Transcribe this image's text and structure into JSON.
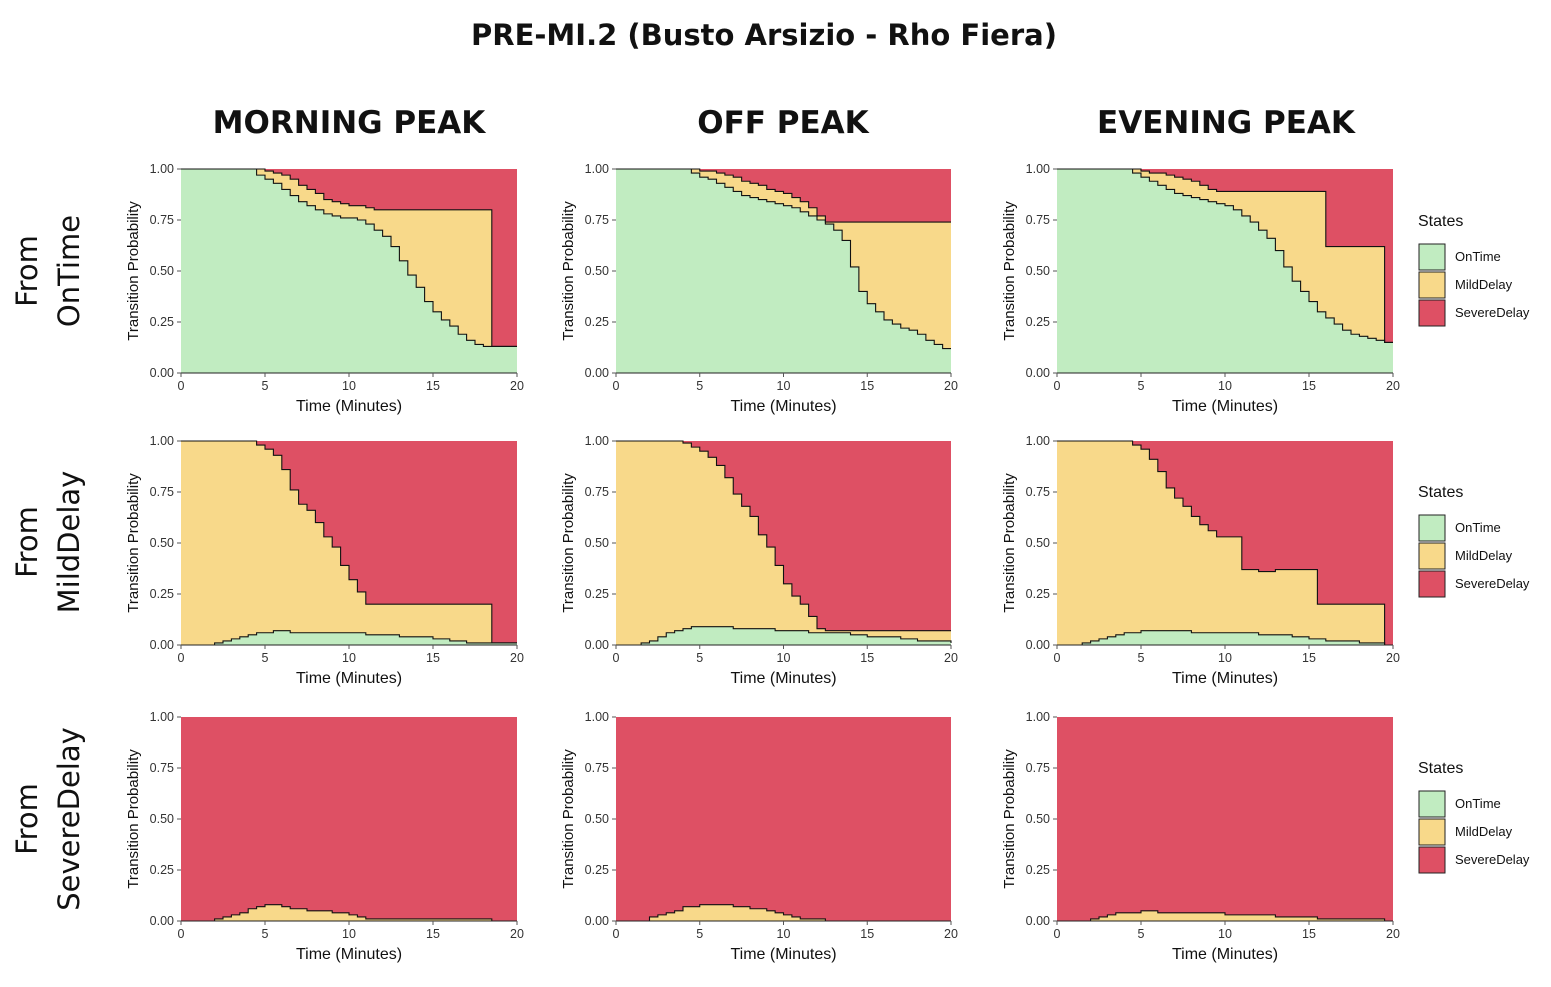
{
  "title": "PRE-MI.2 (Busto Arsizio - Rho Fiera)",
  "column_titles": [
    "MORNING PEAK",
    "OFF PEAK",
    "EVENING PEAK"
  ],
  "row_titles": [
    {
      "line1": "From",
      "line2": "OnTime"
    },
    {
      "line1": "From",
      "line2": "MildDelay"
    },
    {
      "line1": "From",
      "line2": "SevereDelay"
    }
  ],
  "legend": {
    "title": "States",
    "items": [
      {
        "label": "OnTime",
        "color": "#c1ecc1"
      },
      {
        "label": "MildDelay",
        "color": "#f8d98a"
      },
      {
        "label": "SevereDelay",
        "color": "#de5064"
      }
    ]
  },
  "chart_data": {
    "type": "area",
    "subtype": "stacked-step-area",
    "xlabel": "Time (Minutes)",
    "ylabel": "Transition Probability",
    "xlim": [
      0,
      20
    ],
    "ylim": [
      0,
      1
    ],
    "x_ticks": [
      0,
      5,
      10,
      15,
      20
    ],
    "y_ticks": [
      "0.00",
      "0.25",
      "0.50",
      "0.75",
      "1.00"
    ],
    "grid": false,
    "legend_position": "right",
    "series_order": [
      "OnTime",
      "MildDelay",
      "SevereDelay"
    ],
    "colors": {
      "OnTime": "#c1ecc1",
      "MildDelay": "#f8d98a",
      "SevereDelay": "#de5064"
    },
    "panels": [
      {
        "row": "From OnTime",
        "column": "MORNING PEAK",
        "x": [
          0,
          4,
          4.5,
          5,
          5.5,
          6,
          6.5,
          7,
          7.5,
          8,
          8.5,
          9,
          9.5,
          10,
          10.5,
          11,
          11.5,
          12,
          12.5,
          13,
          13.5,
          14,
          14.5,
          15,
          15.5,
          16,
          16.5,
          17,
          17.5,
          18,
          18.5,
          20
        ],
        "OnTime": [
          1.0,
          1.0,
          0.97,
          0.95,
          0.93,
          0.9,
          0.87,
          0.84,
          0.82,
          0.8,
          0.78,
          0.77,
          0.76,
          0.76,
          0.75,
          0.73,
          0.7,
          0.67,
          0.62,
          0.55,
          0.48,
          0.42,
          0.35,
          0.3,
          0.26,
          0.23,
          0.19,
          0.16,
          0.14,
          0.13,
          0.13,
          0.13
        ],
        "MildDelay": [
          0.0,
          0.0,
          0.03,
          0.04,
          0.05,
          0.07,
          0.08,
          0.08,
          0.08,
          0.08,
          0.07,
          0.07,
          0.07,
          0.06,
          0.07,
          0.08,
          0.1,
          0.13,
          0.18,
          0.25,
          0.32,
          0.38,
          0.45,
          0.5,
          0.54,
          0.57,
          0.61,
          0.64,
          0.66,
          0.67,
          0.0,
          0.0
        ]
      },
      {
        "row": "From OnTime",
        "column": "OFF PEAK",
        "x": [
          0,
          4,
          4.5,
          5,
          5.5,
          6,
          6.5,
          7,
          7.5,
          8,
          8.5,
          9,
          9.5,
          10,
          10.5,
          11,
          11.5,
          12,
          12.5,
          13,
          13.5,
          14,
          14.5,
          15,
          15.5,
          16,
          16.5,
          17,
          17.5,
          18,
          18.5,
          19,
          19.5,
          20
        ],
        "OnTime": [
          1.0,
          1.0,
          0.98,
          0.96,
          0.95,
          0.93,
          0.91,
          0.89,
          0.87,
          0.86,
          0.85,
          0.84,
          0.83,
          0.82,
          0.81,
          0.79,
          0.77,
          0.75,
          0.73,
          0.7,
          0.65,
          0.52,
          0.4,
          0.34,
          0.3,
          0.26,
          0.24,
          0.22,
          0.21,
          0.19,
          0.16,
          0.14,
          0.12,
          0.12
        ],
        "MildDelay": [
          0.0,
          0.0,
          0.02,
          0.03,
          0.04,
          0.05,
          0.06,
          0.07,
          0.07,
          0.07,
          0.07,
          0.06,
          0.06,
          0.06,
          0.05,
          0.05,
          0.04,
          0.02,
          0.01,
          0.04,
          0.09,
          0.22,
          0.34,
          0.4,
          0.44,
          0.48,
          0.5,
          0.52,
          0.53,
          0.55,
          0.58,
          0.6,
          0.62,
          0.62
        ]
      },
      {
        "row": "From OnTime",
        "column": "EVENING PEAK",
        "x": [
          0,
          4,
          4.5,
          5,
          5.5,
          6,
          6.5,
          7,
          7.5,
          8,
          8.5,
          9,
          9.5,
          10,
          10.5,
          11,
          11.5,
          12,
          12.5,
          13,
          13.5,
          14,
          14.5,
          15,
          15.5,
          16,
          16.5,
          17,
          17.5,
          18,
          18.5,
          19,
          19.5,
          20
        ],
        "OnTime": [
          1.0,
          1.0,
          0.98,
          0.96,
          0.94,
          0.92,
          0.9,
          0.88,
          0.87,
          0.86,
          0.85,
          0.84,
          0.83,
          0.82,
          0.8,
          0.77,
          0.74,
          0.7,
          0.66,
          0.6,
          0.52,
          0.45,
          0.4,
          0.35,
          0.3,
          0.27,
          0.24,
          0.21,
          0.19,
          0.18,
          0.17,
          0.16,
          0.15,
          0.15
        ],
        "MildDelay": [
          0.0,
          0.0,
          0.02,
          0.03,
          0.04,
          0.06,
          0.07,
          0.08,
          0.08,
          0.08,
          0.07,
          0.06,
          0.06,
          0.07,
          0.09,
          0.12,
          0.15,
          0.19,
          0.23,
          0.29,
          0.37,
          0.44,
          0.49,
          0.54,
          0.59,
          0.35,
          0.38,
          0.41,
          0.43,
          0.44,
          0.45,
          0.46,
          0.0,
          0.0
        ]
      },
      {
        "row": "From MildDelay",
        "column": "MORNING PEAK",
        "x": [
          0,
          1,
          1.5,
          2,
          2.5,
          3,
          3.5,
          4,
          4.5,
          5,
          5.5,
          6,
          6.5,
          7,
          7.5,
          8,
          8.5,
          9,
          9.5,
          10,
          10.5,
          11,
          11.5,
          12,
          12.5,
          13,
          14,
          15,
          16,
          17,
          18,
          18.5,
          19,
          20
        ],
        "OnTime": [
          0.0,
          0.0,
          0.0,
          0.01,
          0.02,
          0.03,
          0.04,
          0.05,
          0.06,
          0.06,
          0.07,
          0.07,
          0.06,
          0.06,
          0.06,
          0.06,
          0.06,
          0.06,
          0.06,
          0.06,
          0.06,
          0.05,
          0.05,
          0.05,
          0.05,
          0.04,
          0.04,
          0.03,
          0.02,
          0.01,
          0.01,
          0.01,
          0.01,
          0.01
        ],
        "MildDelay": [
          1.0,
          1.0,
          1.0,
          0.99,
          0.98,
          0.97,
          0.96,
          0.95,
          0.92,
          0.9,
          0.86,
          0.79,
          0.7,
          0.63,
          0.6,
          0.54,
          0.47,
          0.42,
          0.33,
          0.26,
          0.2,
          0.15,
          0.15,
          0.15,
          0.15,
          0.16,
          0.16,
          0.17,
          0.18,
          0.19,
          0.19,
          0.0,
          0.0,
          0.0
        ]
      },
      {
        "row": "From MildDelay",
        "column": "OFF PEAK",
        "x": [
          0,
          1,
          1.5,
          2,
          2.5,
          3,
          3.5,
          4,
          4.5,
          5,
          5.5,
          6,
          6.5,
          7,
          7.5,
          8,
          8.5,
          9,
          9.5,
          10,
          10.5,
          11,
          11.5,
          12,
          12.5,
          13,
          14,
          15,
          16,
          17,
          18,
          19,
          20
        ],
        "OnTime": [
          0.0,
          0.0,
          0.01,
          0.02,
          0.04,
          0.06,
          0.07,
          0.08,
          0.09,
          0.09,
          0.09,
          0.09,
          0.09,
          0.08,
          0.08,
          0.08,
          0.08,
          0.08,
          0.07,
          0.07,
          0.07,
          0.07,
          0.06,
          0.06,
          0.06,
          0.06,
          0.05,
          0.04,
          0.04,
          0.03,
          0.02,
          0.02,
          0.01
        ],
        "MildDelay": [
          1.0,
          1.0,
          0.99,
          0.98,
          0.96,
          0.94,
          0.93,
          0.91,
          0.88,
          0.86,
          0.83,
          0.79,
          0.73,
          0.66,
          0.6,
          0.55,
          0.46,
          0.4,
          0.32,
          0.23,
          0.17,
          0.13,
          0.08,
          0.02,
          0.01,
          0.01,
          0.02,
          0.03,
          0.03,
          0.04,
          0.05,
          0.05,
          0.06
        ]
      },
      {
        "row": "From MildDelay",
        "column": "EVENING PEAK",
        "x": [
          0,
          1,
          1.5,
          2,
          2.5,
          3,
          3.5,
          4,
          4.5,
          5,
          5.5,
          6,
          6.5,
          7,
          7.5,
          8,
          8.5,
          9,
          9.5,
          10,
          10.5,
          11,
          12,
          13,
          14,
          15,
          15.5,
          16,
          17,
          18,
          19,
          19.5,
          20
        ],
        "OnTime": [
          0.0,
          0.0,
          0.01,
          0.02,
          0.03,
          0.04,
          0.05,
          0.06,
          0.06,
          0.07,
          0.07,
          0.07,
          0.07,
          0.07,
          0.07,
          0.06,
          0.06,
          0.06,
          0.06,
          0.06,
          0.06,
          0.06,
          0.05,
          0.05,
          0.04,
          0.03,
          0.03,
          0.02,
          0.02,
          0.01,
          0.01,
          0.0,
          0.0
        ],
        "MildDelay": [
          1.0,
          1.0,
          0.99,
          0.98,
          0.97,
          0.96,
          0.95,
          0.94,
          0.92,
          0.89,
          0.84,
          0.78,
          0.7,
          0.65,
          0.61,
          0.57,
          0.53,
          0.5,
          0.47,
          0.47,
          0.47,
          0.31,
          0.31,
          0.32,
          0.33,
          0.34,
          0.17,
          0.18,
          0.18,
          0.19,
          0.19,
          0.0,
          0.0
        ]
      },
      {
        "row": "From SevereDelay",
        "column": "MORNING PEAK",
        "x": [
          0,
          1,
          1.5,
          2,
          2.5,
          3,
          3.5,
          4,
          4.5,
          5,
          5.5,
          6,
          6.5,
          7,
          7.5,
          8,
          8.5,
          9,
          9.5,
          10,
          10.5,
          11,
          12,
          13,
          14,
          15,
          16,
          17,
          18,
          18.5,
          19,
          20
        ],
        "OnTime": [
          0.0,
          0.0,
          0.0,
          0.0,
          0.0,
          0.0,
          0.0,
          0.0,
          0.0,
          0.0,
          0.0,
          0.0,
          0.0,
          0.0,
          0.0,
          0.0,
          0.0,
          0.0,
          0.0,
          0.0,
          0.0,
          0.0,
          0.0,
          0.0,
          0.0,
          0.0,
          0.0,
          0.0,
          0.0,
          0.0,
          0.0,
          0.0
        ],
        "MildDelay": [
          0.0,
          0.0,
          0.0,
          0.01,
          0.02,
          0.03,
          0.04,
          0.06,
          0.07,
          0.08,
          0.08,
          0.07,
          0.06,
          0.06,
          0.05,
          0.05,
          0.05,
          0.04,
          0.04,
          0.03,
          0.02,
          0.01,
          0.01,
          0.01,
          0.01,
          0.01,
          0.01,
          0.01,
          0.01,
          0.0,
          0.0,
          0.0
        ]
      },
      {
        "row": "From SevereDelay",
        "column": "OFF PEAK",
        "x": [
          0,
          1,
          1.5,
          2,
          2.5,
          3,
          3.5,
          4,
          4.5,
          5,
          5.5,
          6,
          6.5,
          7,
          7.5,
          8,
          8.5,
          9,
          9.5,
          10,
          10.5,
          11,
          11.5,
          12,
          12.5,
          13,
          20
        ],
        "OnTime": [
          0.0,
          0.0,
          0.0,
          0.0,
          0.0,
          0.0,
          0.0,
          0.0,
          0.0,
          0.0,
          0.0,
          0.0,
          0.0,
          0.0,
          0.0,
          0.0,
          0.0,
          0.0,
          0.0,
          0.0,
          0.0,
          0.0,
          0.0,
          0.0,
          0.0,
          0.0,
          0.0
        ],
        "MildDelay": [
          0.0,
          0.0,
          0.0,
          0.02,
          0.03,
          0.04,
          0.05,
          0.07,
          0.07,
          0.08,
          0.08,
          0.08,
          0.08,
          0.07,
          0.07,
          0.06,
          0.06,
          0.05,
          0.04,
          0.03,
          0.02,
          0.01,
          0.01,
          0.01,
          0.0,
          0.0,
          0.0
        ]
      },
      {
        "row": "From SevereDelay",
        "column": "EVENING PEAK",
        "x": [
          0,
          1,
          1.5,
          2,
          2.5,
          3,
          3.5,
          4,
          4.5,
          5,
          5.5,
          6,
          7,
          8,
          9,
          10,
          11,
          12,
          13,
          14,
          15,
          15.5,
          16,
          17,
          18,
          19,
          19.5,
          20
        ],
        "OnTime": [
          0.0,
          0.0,
          0.0,
          0.0,
          0.0,
          0.0,
          0.0,
          0.0,
          0.0,
          0.0,
          0.0,
          0.0,
          0.0,
          0.0,
          0.0,
          0.0,
          0.0,
          0.0,
          0.0,
          0.0,
          0.0,
          0.0,
          0.0,
          0.0,
          0.0,
          0.0,
          0.0,
          0.0
        ],
        "MildDelay": [
          0.0,
          0.0,
          0.0,
          0.01,
          0.02,
          0.03,
          0.04,
          0.04,
          0.04,
          0.05,
          0.05,
          0.04,
          0.04,
          0.04,
          0.04,
          0.03,
          0.03,
          0.03,
          0.02,
          0.02,
          0.02,
          0.01,
          0.01,
          0.01,
          0.01,
          0.01,
          0.0,
          0.0
        ]
      }
    ]
  }
}
